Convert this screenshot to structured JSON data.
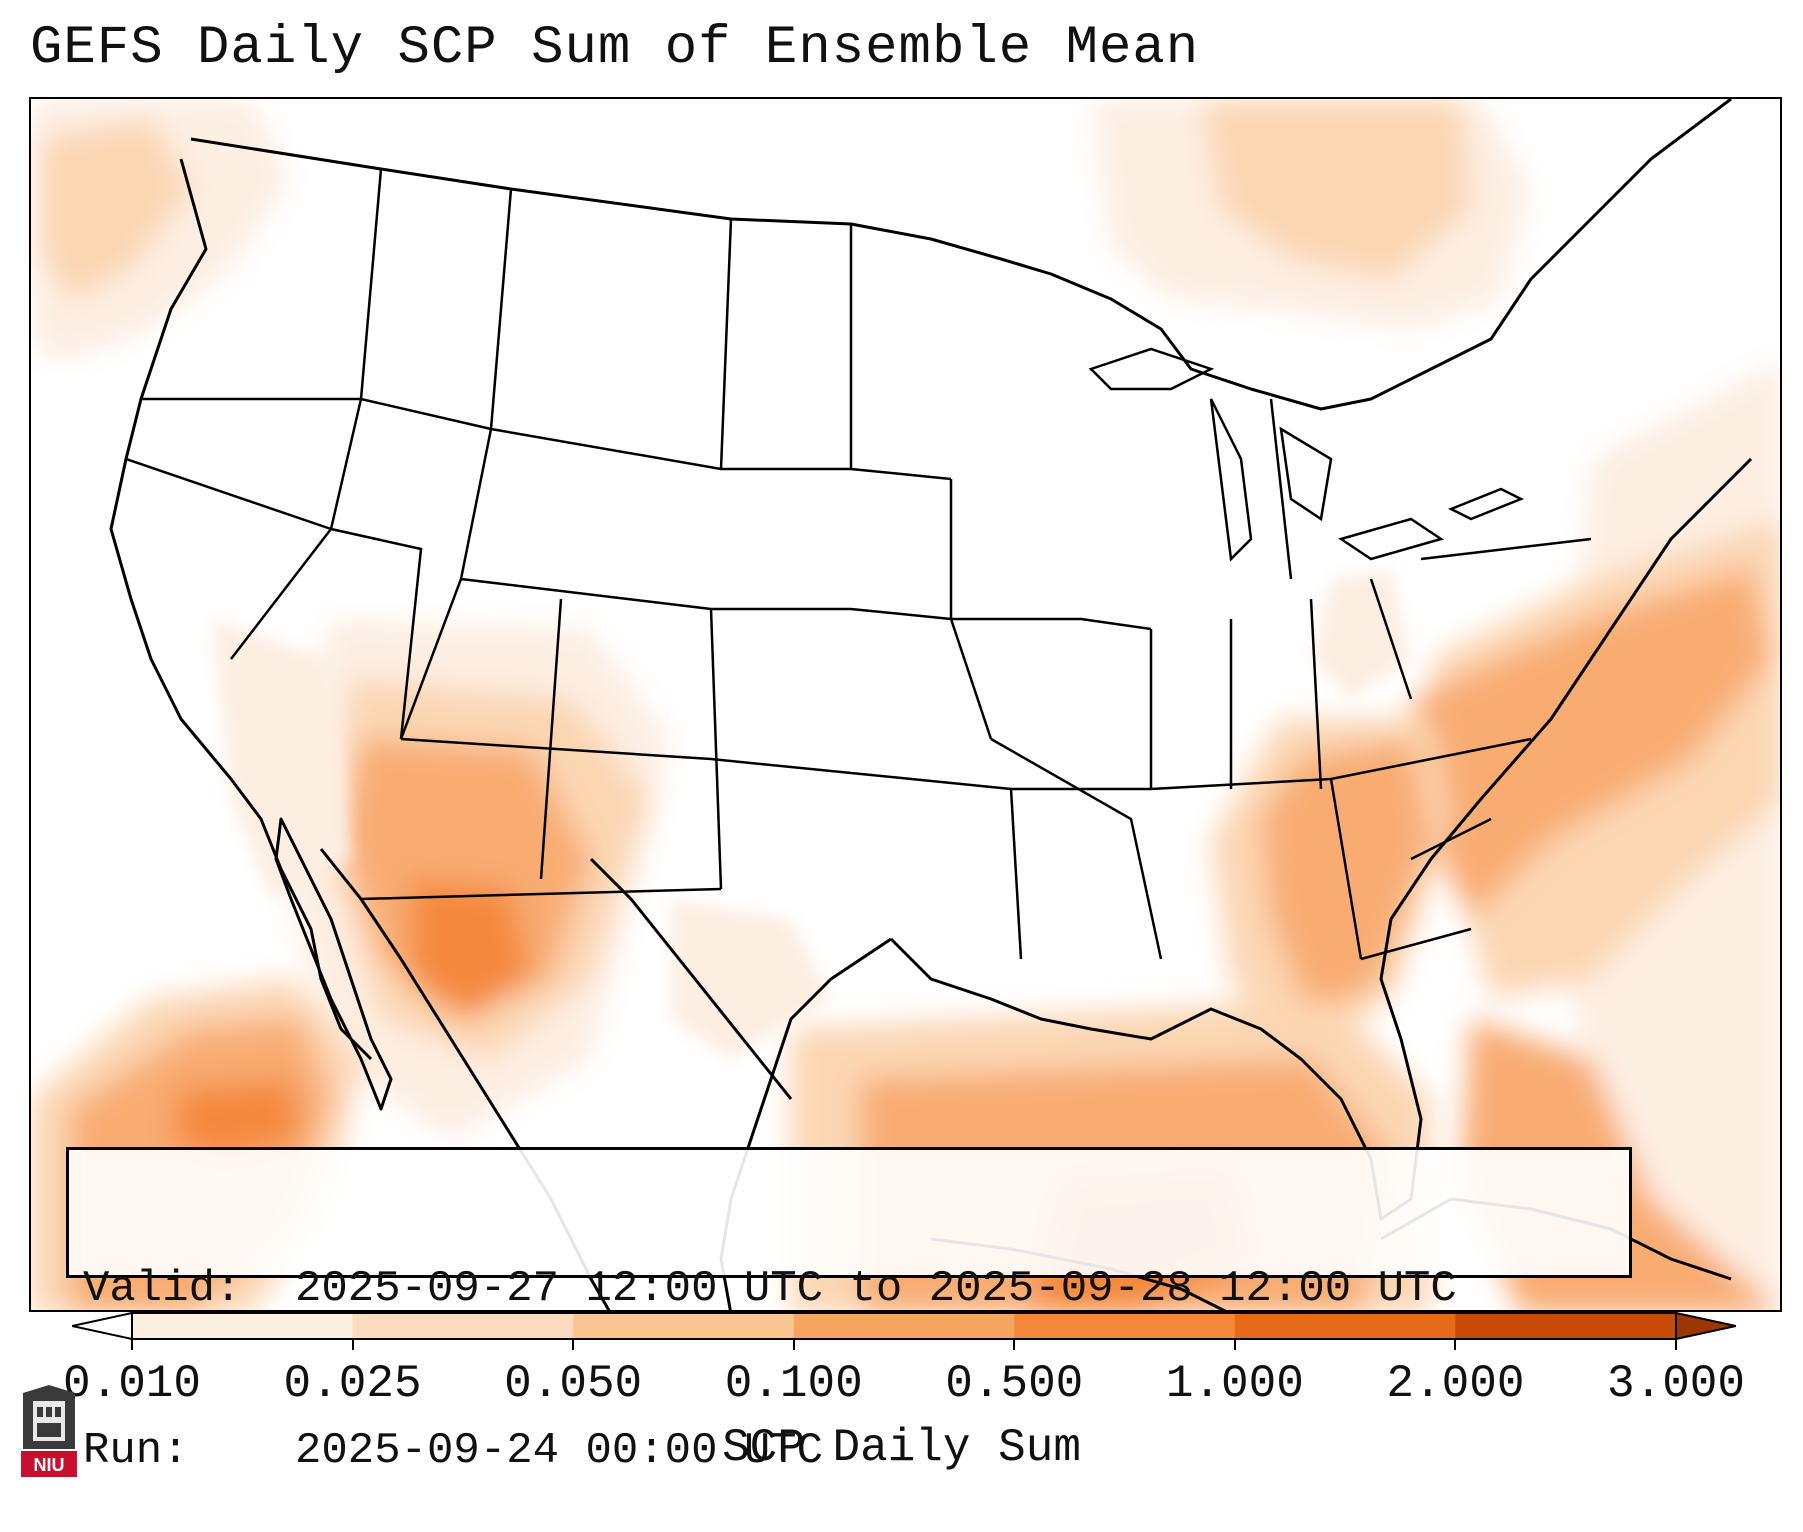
{
  "title": "GEFS Daily SCP Sum of Ensemble Mean",
  "info": {
    "valid_label": "Valid:",
    "valid_value": "2025-09-27 12:00 UTC to 2025-09-28 12:00 UTC",
    "run_label": "Run:",
    "run_value": "2025-09-24 00:00 UTC"
  },
  "colorbar": {
    "label": "SCP Daily Sum",
    "ticks": [
      "0.010",
      "0.025",
      "0.050",
      "0.100",
      "0.500",
      "1.000",
      "2.000",
      "3.000"
    ],
    "colors": [
      "#fdeee2",
      "#fcdcc0",
      "#fbc592",
      "#f8a461",
      "#f4883a",
      "#e56a1c",
      "#c84a07"
    ],
    "under_color": "#ffffff",
    "over_color": "#9c3602"
  },
  "logo": {
    "text": "NIU"
  },
  "map_colors": {
    "faint": "#fdeee2",
    "light": "#fbd6b2",
    "medium": "#f8ac72",
    "strong": "#f4893e",
    "deep": "#e56d22"
  }
}
